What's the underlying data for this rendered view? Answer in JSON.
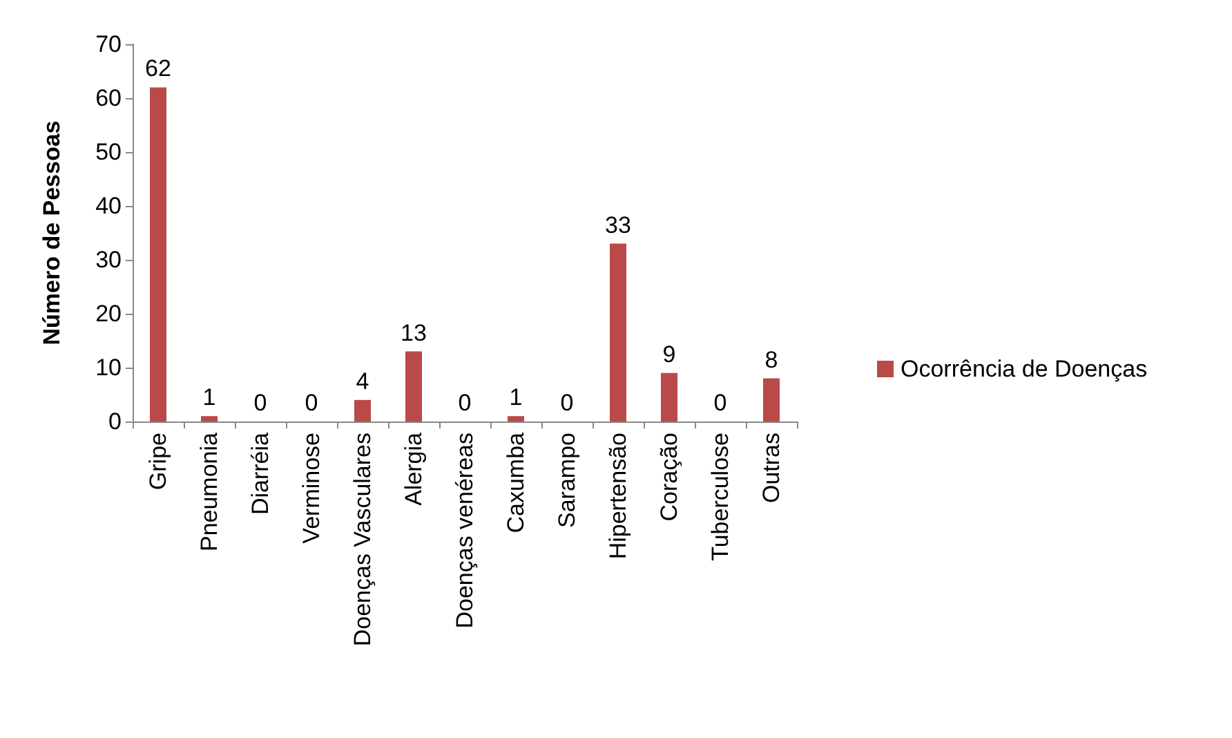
{
  "chart_data": {
    "type": "bar",
    "ylabel": "Número de Pessoas",
    "categories": [
      "Gripe",
      "Pneumonia",
      "Diarréia",
      "Verminose",
      "Doenças Vasculares",
      "Alergia",
      "Doenças venéreas",
      "Caxumba",
      "Sarampo",
      "Hipertensão",
      "Coração",
      "Tuberculose",
      "Outras"
    ],
    "series": [
      {
        "name": "Ocorrência de Doenças",
        "color": "#b94a48",
        "values": [
          62,
          1,
          0,
          0,
          4,
          13,
          0,
          1,
          0,
          33,
          9,
          0,
          8
        ]
      }
    ],
    "ylim": [
      0,
      70
    ],
    "yticks": [
      0,
      10,
      20,
      30,
      40,
      50,
      60,
      70
    ],
    "data_labels": true,
    "legend": "right",
    "grid": false
  }
}
